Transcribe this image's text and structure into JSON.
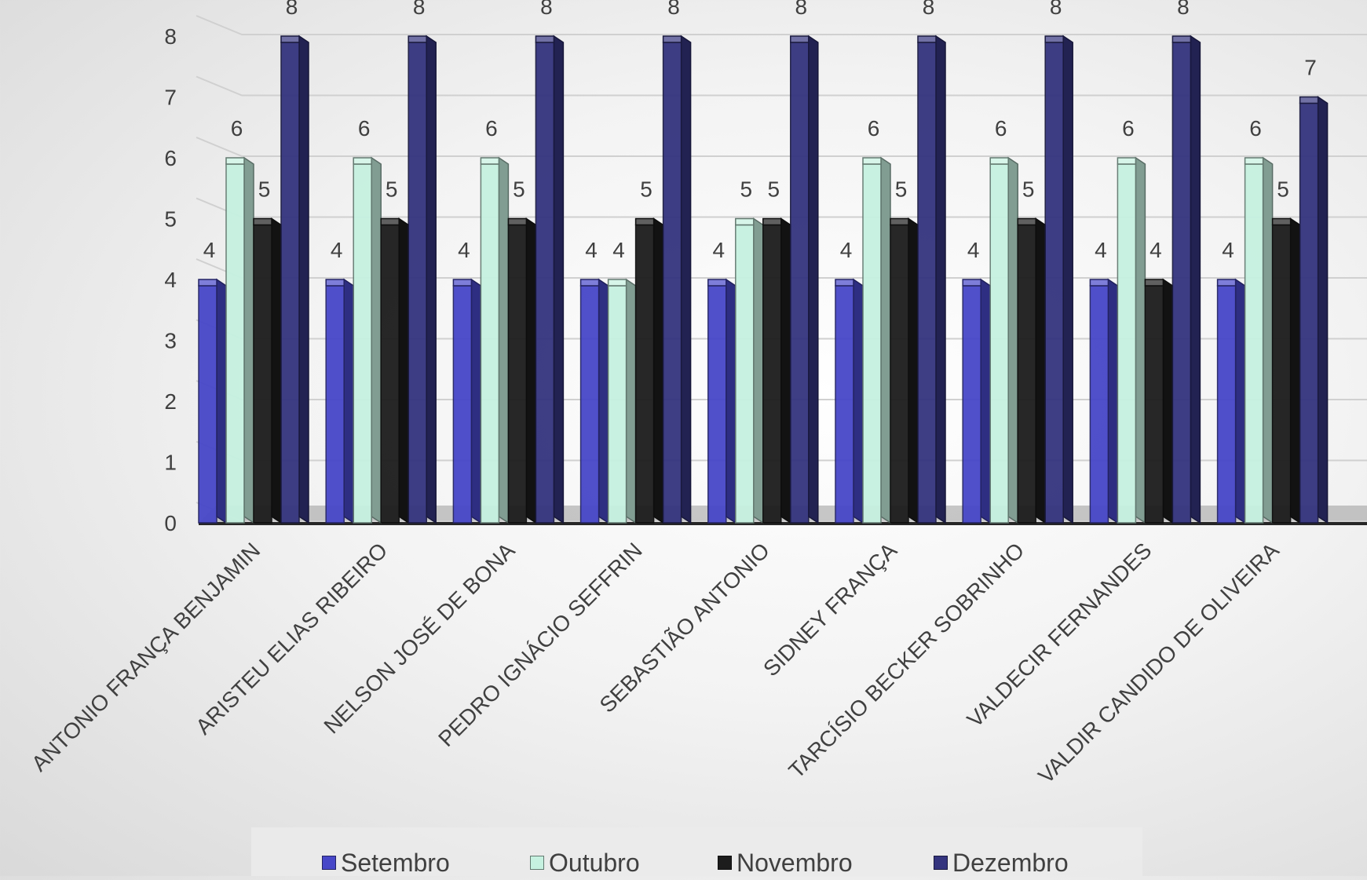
{
  "chart_data": {
    "type": "bar",
    "categories": [
      "ANTONIO FRANÇA BENJAMIN",
      "ARISTEU ELIAS RIBEIRO",
      "NELSON JOSÉ DE BONA",
      "PEDRO IGNÁCIO SEFFRIN",
      "SEBASTIÃO ANTONIO",
      "SIDNEY FRANÇA",
      "TARCÍSIO BECKER SOBRINHO",
      "VALDECIR FERNANDES",
      "VALDIR CANDIDO DE OLIVEIRA"
    ],
    "series": [
      {
        "name": "Setembro",
        "color": "#4747c8",
        "values": [
          4,
          4,
          4,
          4,
          4,
          4,
          4,
          4,
          4
        ]
      },
      {
        "name": "Outubro",
        "color": "#c6f1e0",
        "values": [
          6,
          6,
          6,
          4,
          5,
          6,
          6,
          6,
          6
        ]
      },
      {
        "name": "Novembro",
        "color": "#1c1c1c",
        "values": [
          5,
          5,
          5,
          5,
          5,
          5,
          5,
          4,
          5
        ]
      },
      {
        "name": "Dezembro",
        "color": "#34347e",
        "values": [
          8,
          8,
          8,
          8,
          8,
          8,
          8,
          8,
          7
        ]
      }
    ],
    "ylim": [
      0,
      8
    ],
    "yticks": [
      0,
      1,
      2,
      3,
      4,
      5,
      6,
      7,
      8
    ],
    "grid": true,
    "legend": "bottom",
    "data_labels": true
  }
}
